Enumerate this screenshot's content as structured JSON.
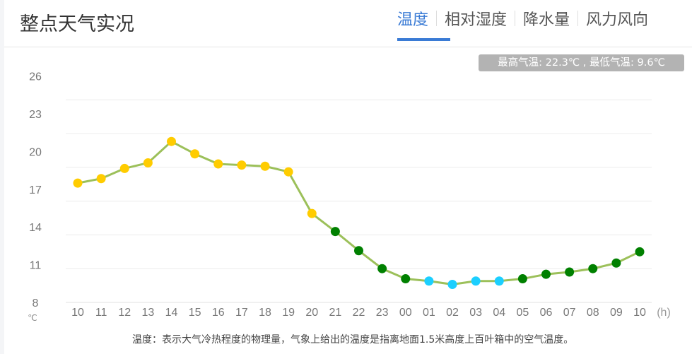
{
  "header": {
    "title": "整点天气实况"
  },
  "tabs": [
    {
      "label": "温度",
      "active": true
    },
    {
      "label": "相对湿度"
    },
    {
      "label": "降水量"
    },
    {
      "label": "风力风向"
    }
  ],
  "summary": "最高气温: 22.3℃ , 最低气温: 9.6℃",
  "note": "温度：表示大气冷热程度的物理量，气象上给出的温度是指离地面1.5米高度上百叶箱中的空气温度。",
  "colors": {
    "accent": "#3a7bd5",
    "line": "#9cc05a",
    "warm": "#ffcc00",
    "mild": "#008000",
    "cold": "#1ccfff",
    "grid": "#ececec"
  },
  "chart_data": {
    "type": "line",
    "title": "",
    "xlabel": "(h)",
    "ylabel": "℃",
    "ylim": [
      8,
      26
    ],
    "yticks": [
      26,
      23,
      20,
      17,
      14,
      11,
      8
    ],
    "categories": [
      "10",
      "11",
      "12",
      "13",
      "14",
      "15",
      "16",
      "17",
      "18",
      "19",
      "20",
      "21",
      "22",
      "23",
      "00",
      "01",
      "02",
      "03",
      "04",
      "05",
      "06",
      "07",
      "08",
      "09",
      "10"
    ],
    "values": [
      18.6,
      19.0,
      19.9,
      20.4,
      22.3,
      21.2,
      20.3,
      20.2,
      20.1,
      19.6,
      15.9,
      14.3,
      12.6,
      11.0,
      10.1,
      9.9,
      9.6,
      9.9,
      9.9,
      10.1,
      10.5,
      10.7,
      11.0,
      11.5,
      12.5
    ],
    "grid": true,
    "legend": "none"
  }
}
